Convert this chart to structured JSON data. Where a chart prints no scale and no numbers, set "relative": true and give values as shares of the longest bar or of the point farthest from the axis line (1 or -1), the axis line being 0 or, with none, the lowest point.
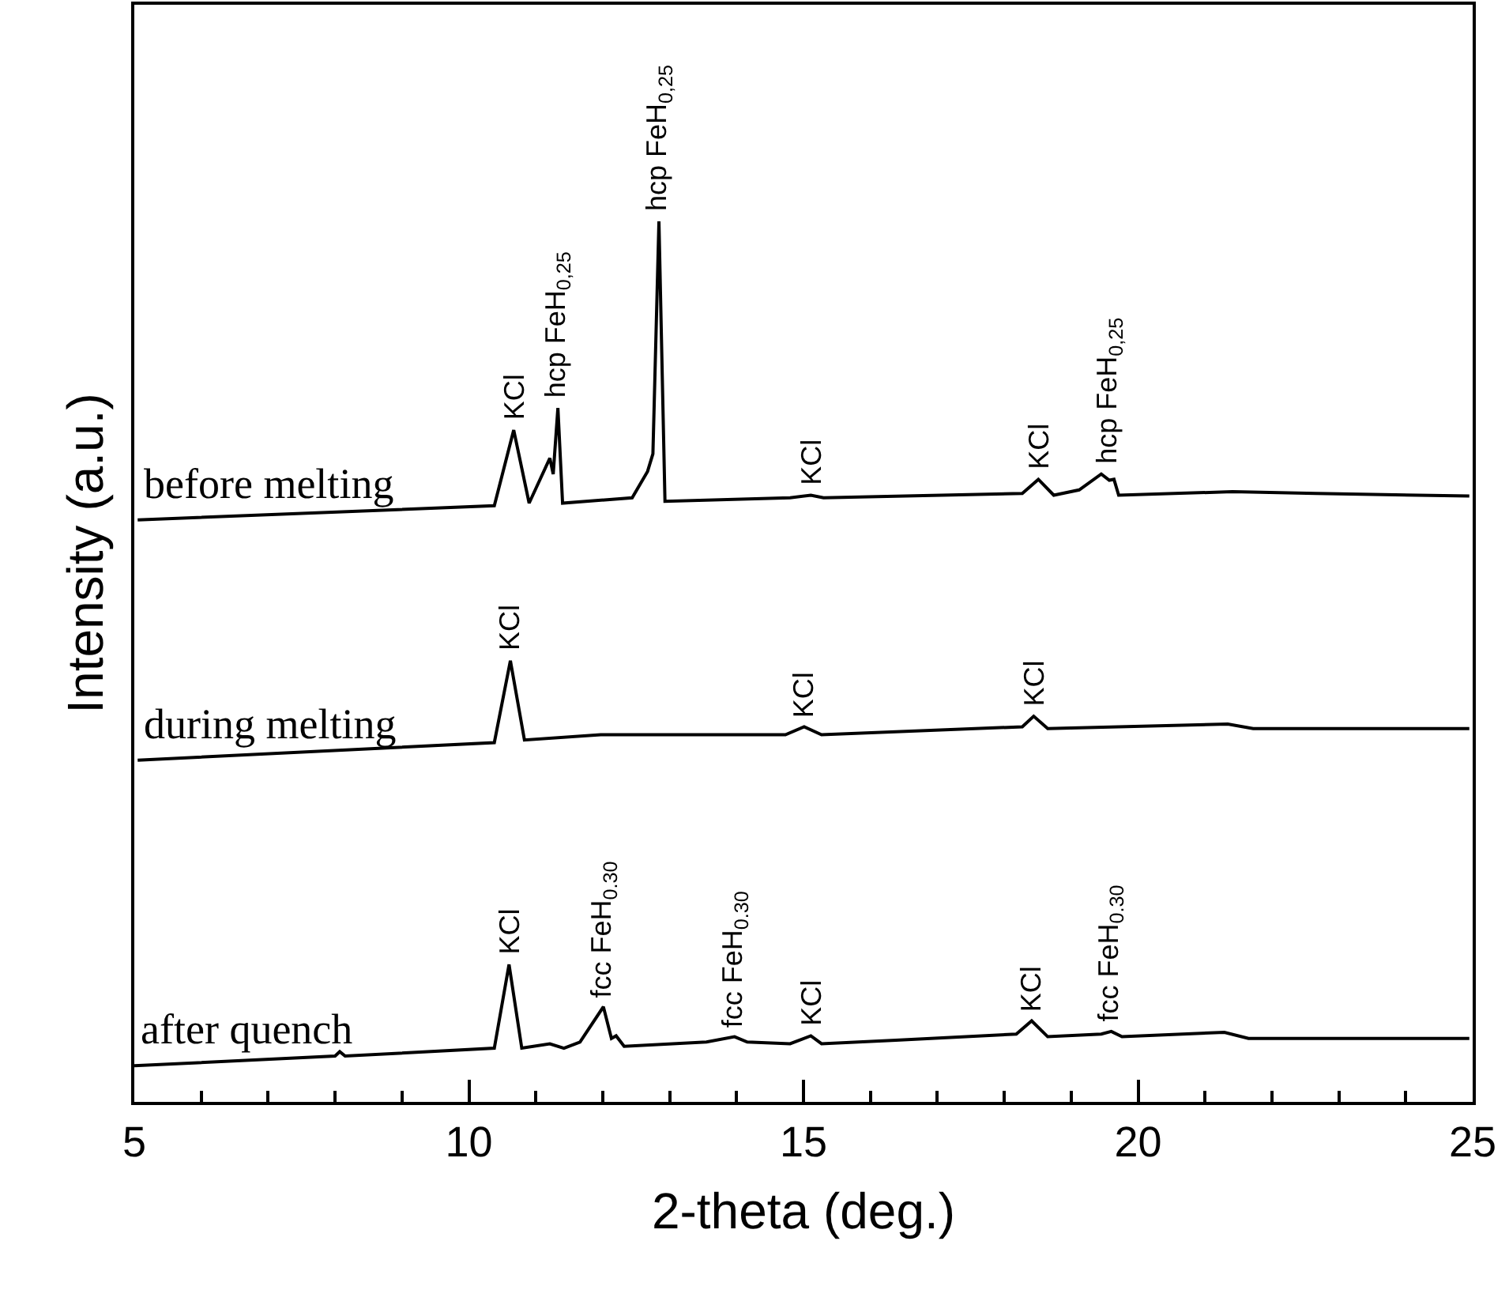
{
  "chart_data": {
    "type": "line",
    "relative": true,
    "xlabel": "2-theta (deg.)",
    "ylabel": "Intensity (a.u.)",
    "xlim": [
      5,
      25
    ],
    "xticks": [
      5,
      10,
      15,
      20,
      25
    ],
    "series": [
      {
        "name": "before melting",
        "color": "#000000",
        "x": [
          5.05,
          10.38,
          10.67,
          10.9,
          11.21,
          11.26,
          11.33,
          11.4,
          12.44,
          12.67,
          12.75,
          12.84,
          12.93,
          14.8,
          15.11,
          15.3,
          18.27,
          18.51,
          18.74,
          19.12,
          19.45,
          19.57,
          19.64,
          19.71,
          21.41,
          22.66,
          24.95
        ],
        "values": [
          0.661,
          0.677,
          0.763,
          0.68,
          0.731,
          0.713,
          0.788,
          0.68,
          0.686,
          0.716,
          0.736,
          1,
          0.682,
          0.686,
          0.689,
          0.686,
          0.691,
          0.707,
          0.689,
          0.695,
          0.713,
          0.706,
          0.707,
          0.689,
          0.693,
          0.691,
          0.688
        ]
      },
      {
        "name": "during melting",
        "color": "#000000",
        "x": [
          5.05,
          10.38,
          10.62,
          10.83,
          11.97,
          14.73,
          15.01,
          15.27,
          18.27,
          18.44,
          18.65,
          21.34,
          21.72,
          24.95
        ],
        "values": [
          0.388,
          0.408,
          0.501,
          0.411,
          0.417,
          0.417,
          0.426,
          0.417,
          0.426,
          0.438,
          0.424,
          0.429,
          0.424,
          0.424
        ]
      },
      {
        "name": "after quench",
        "color": "#000000",
        "x": [
          5.0,
          8.0,
          8.07,
          8.15,
          10.38,
          10.6,
          10.79,
          11.21,
          11.42,
          11.66,
          12.01,
          12.13,
          12.2,
          12.32,
          13.55,
          13.97,
          14.16,
          14.8,
          15.11,
          15.27,
          16.38,
          18.18,
          18.41,
          18.65,
          19.45,
          19.6,
          19.76,
          21.29,
          21.65,
          24.95
        ],
        "values": [
          0.041,
          0.052,
          0.057,
          0.052,
          0.061,
          0.156,
          0.061,
          0.066,
          0.061,
          0.068,
          0.108,
          0.072,
          0.075,
          0.063,
          0.068,
          0.074,
          0.068,
          0.066,
          0.075,
          0.066,
          0.07,
          0.077,
          0.092,
          0.074,
          0.077,
          0.08,
          0.074,
          0.079,
          0.072,
          0.072
        ]
      }
    ],
    "annotations": [
      {
        "text": "KCl",
        "x": 10.67,
        "y": 0.763
      },
      {
        "text": "hcp FeH$_{0,25}$",
        "x": 11.33,
        "y": 0.788
      },
      {
        "text": "hcp FeH$_{0,25}$",
        "x": 12.84,
        "y": 1
      },
      {
        "text": "KCl",
        "x": 15.11,
        "y": 0.689
      },
      {
        "text": "KCl",
        "x": 18.51,
        "y": 0.707
      },
      {
        "text": "hcp FeH$_{0,25}$",
        "x": 19.57,
        "y": 0.713
      },
      {
        "text": "KCl",
        "x": 10.62,
        "y": 0.501
      },
      {
        "text": "KCl",
        "x": 15.01,
        "y": 0.426
      },
      {
        "text": "KCl",
        "x": 18.44,
        "y": 0.438
      },
      {
        "text": "KCl",
        "x": 10.6,
        "y": 0.156
      },
      {
        "text": "fcc FeH$_{0.30}$",
        "x": 12.01,
        "y": 0.108
      },
      {
        "text": "fcc FeH$_{0.30}$",
        "x": 13.97,
        "y": 0.074
      },
      {
        "text": "KCl",
        "x": 15.11,
        "y": 0.075
      },
      {
        "text": "KCl",
        "x": 18.41,
        "y": 0.092
      },
      {
        "text": "fcc FeH$_{0.30}$",
        "x": 19.6,
        "y": 0.08
      }
    ]
  }
}
